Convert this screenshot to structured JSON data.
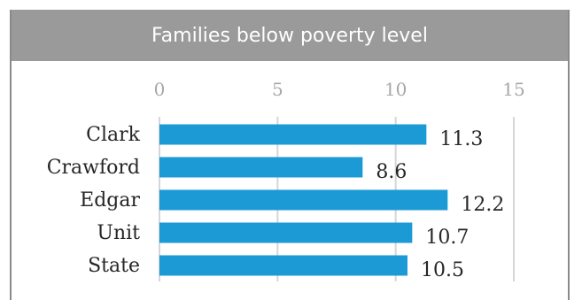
{
  "chart_data": {
    "type": "bar",
    "orientation": "horizontal",
    "title": "Families below poverty level",
    "categories": [
      "Clark",
      "Crawford",
      "Edgar",
      "Unit",
      "State"
    ],
    "values": [
      11.3,
      8.6,
      12.2,
      10.7,
      10.5
    ],
    "value_labels": [
      "11.3",
      "8.6",
      "12.2",
      "10.7",
      "10.5"
    ],
    "xlim": [
      0,
      15
    ],
    "x_ticks": [
      0,
      5,
      10,
      15
    ],
    "x_tick_labels": [
      "0",
      "5",
      "10",
      "15"
    ],
    "grid": true,
    "axis_position": "top",
    "colors": {
      "bar": "#1b9ad6",
      "title_bg": "#9a9a9a",
      "grid": "#d6d6d6"
    }
  }
}
